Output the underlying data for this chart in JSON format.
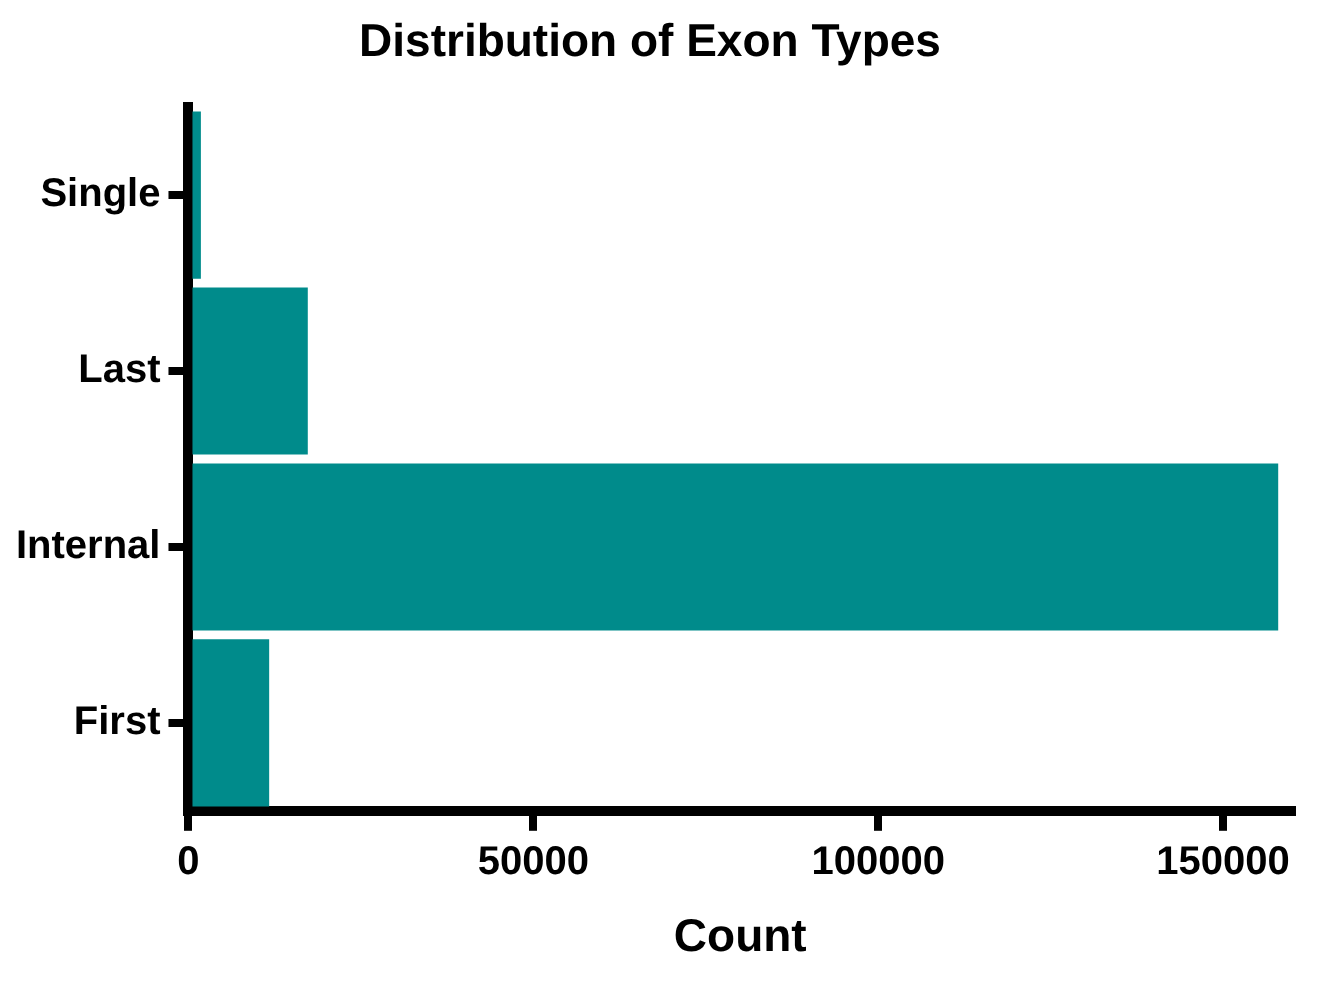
{
  "chart_data": {
    "type": "bar",
    "orientation": "horizontal",
    "title": "Distribution of Exon Types",
    "xlabel": "Count",
    "categories": [
      "Single",
      "Last",
      "Internal",
      "First"
    ],
    "values": [
      1800,
      17300,
      158000,
      11700
    ],
    "color": "#008b8b",
    "xlim": [
      0,
      160000
    ],
    "xticks": [
      0,
      50000,
      100000,
      150000
    ],
    "grid": false,
    "legend": false
  }
}
